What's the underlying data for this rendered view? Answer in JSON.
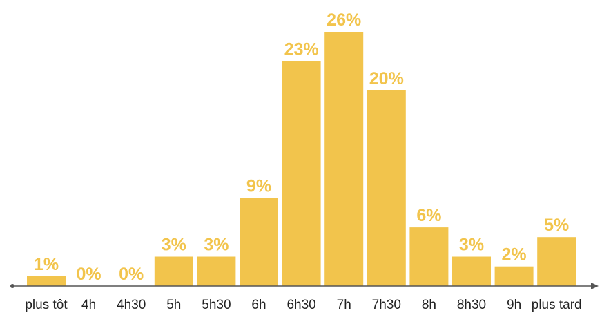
{
  "chart_data": {
    "type": "bar",
    "title": "",
    "xlabel": "",
    "ylabel": "",
    "categories": [
      "plus tôt",
      "4h",
      "4h30",
      "5h",
      "5h30",
      "6h",
      "6h30",
      "7h",
      "7h30",
      "8h",
      "8h30",
      "9h",
      "plus tard"
    ],
    "values": [
      1,
      0,
      0,
      3,
      3,
      9,
      23,
      26,
      20,
      6,
      3,
      2,
      5
    ],
    "value_labels": [
      "1%",
      "0%",
      "0%",
      "3%",
      "3%",
      "9%",
      "23%",
      "26%",
      "20%",
      "6%",
      "3%",
      "2%",
      "5%"
    ],
    "ylim": [
      0,
      26
    ],
    "grid": false,
    "legend": "none",
    "colors": {
      "bar": "#f2c44c",
      "label": "#f2c44c",
      "category_text": "#222222",
      "axis": "#555555"
    }
  }
}
